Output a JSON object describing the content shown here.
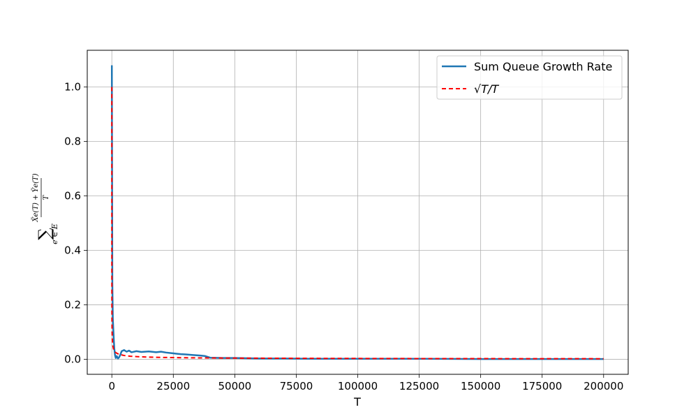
{
  "chart_data": {
    "type": "line",
    "title": "",
    "xlabel": "T",
    "ylabel": "∑ e∈E (X̃e(T) + Ỹe(T)) / T",
    "ylabel_parts": {
      "sum": "∑",
      "sub": "e ∈ E",
      "numerator": "X̃e(T) + Ỹe(T)",
      "denominator": "T"
    },
    "xlim": [
      -10000,
      210000
    ],
    "ylim": [
      -0.055,
      1.135
    ],
    "xticks": [
      0,
      25000,
      50000,
      75000,
      100000,
      125000,
      150000,
      175000,
      200000
    ],
    "xtick_labels": [
      "0",
      "25000",
      "50000",
      "75000",
      "100000",
      "125000",
      "150000",
      "175000",
      "200000"
    ],
    "yticks": [
      0.0,
      0.2,
      0.4,
      0.6,
      0.8,
      1.0
    ],
    "ytick_labels": [
      "0.0",
      "0.2",
      "0.4",
      "0.6",
      "0.8",
      "1.0"
    ],
    "grid": true,
    "legend_position": "top-right",
    "series": [
      {
        "name": "Sum Queue Growth Rate",
        "color": "#1f77b4",
        "style": "solid",
        "x": [
          0,
          200,
          400,
          600,
          800,
          1000,
          1300,
          1600,
          2000,
          2500,
          3000,
          3500,
          4000,
          5000,
          6000,
          7000,
          8000,
          10000,
          12000,
          15000,
          18000,
          20000,
          22000,
          25000,
          28000,
          30000,
          33000,
          36000,
          38000,
          40000,
          45000,
          50000,
          55000,
          60000,
          70000,
          80000,
          100000,
          125000,
          150000,
          175000,
          200000
        ],
        "y": [
          1.08,
          0.28,
          0.15,
          0.11,
          0.07,
          0.04,
          0.015,
          0.005,
          0.012,
          0.003,
          0.008,
          0.018,
          0.03,
          0.034,
          0.028,
          0.032,
          0.026,
          0.03,
          0.027,
          0.029,
          0.026,
          0.028,
          0.025,
          0.022,
          0.019,
          0.018,
          0.016,
          0.014,
          0.012,
          0.006,
          0.005,
          0.005,
          0.004,
          0.003,
          0.003,
          0.002,
          0.002,
          0.002,
          0.001,
          0.001,
          0.001
        ]
      },
      {
        "name": "√T/T",
        "color": "#ff0000",
        "style": "dashed",
        "formula": "sqrt(T)/T",
        "x": [
          1,
          2,
          4,
          10,
          25,
          50,
          100,
          200,
          400,
          700,
          1000,
          1500,
          2000,
          3000,
          5000,
          7500,
          10000,
          15000,
          20000,
          30000,
          40000,
          50000,
          75000,
          100000,
          125000,
          150000,
          175000,
          200000
        ],
        "y": [
          1.0,
          0.7071,
          0.5,
          0.3162,
          0.2,
          0.1414,
          0.1,
          0.0707,
          0.05,
          0.0378,
          0.0316,
          0.0258,
          0.0224,
          0.0183,
          0.0141,
          0.0115,
          0.01,
          0.0082,
          0.0071,
          0.0058,
          0.005,
          0.0045,
          0.0037,
          0.0032,
          0.0028,
          0.0026,
          0.0024,
          0.0022
        ]
      }
    ]
  }
}
